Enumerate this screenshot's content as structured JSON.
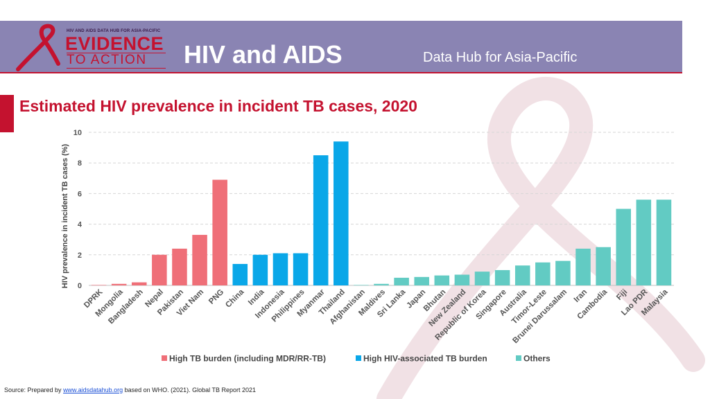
{
  "header": {
    "logo_small_text": "HIV AND AIDS DATA HUB FOR ASIA-PACIFIC",
    "logo_main": "EVIDENCE",
    "logo_sub": "TO ACTION",
    "title": "HIV and AIDS",
    "subtitle": "Data Hub for Asia-Pacific"
  },
  "colors": {
    "header_bg": "#8a84b3",
    "accent_red": "#c4122f",
    "high_tb": "#ef6f78",
    "high_hiv_tb": "#0aa7e8",
    "others": "#62cbc3"
  },
  "source": {
    "prefix": "Source: Prepared by ",
    "link": "www.aidsdatahub.org",
    "suffix": " based on WHO. (2021). Global TB Report 2021"
  },
  "chart_data": {
    "type": "bar",
    "title": "Estimated HIV prevalence in incident TB cases, 2020",
    "xlabel": "",
    "ylabel": "HIV prevalence in incident TB cases (%)",
    "ylim": [
      0,
      10
    ],
    "yticks": [
      0,
      2,
      4,
      6,
      8,
      10
    ],
    "grid": true,
    "legend_position": "bottom",
    "categories": [
      "DPRK",
      "Mongolia",
      "Bangladesh",
      "Nepal",
      "Pakistan",
      "Viet Nam",
      "PNG",
      "China",
      "India",
      "Indonesia",
      "Philippines",
      "Myanmar",
      "Thailand",
      "Afghanistan",
      "Maldives",
      "Sri Lanka",
      "Japan",
      "Bhutan",
      "New Zealand",
      "Republic of Korea",
      "Singapore",
      "Australia",
      "Timor-Leste",
      "Brunei Darussalam",
      "Iran",
      "Cambodia",
      "Fiji",
      "Lao PDR",
      "Malaysia"
    ],
    "values": [
      0.0,
      0.1,
      0.2,
      2.0,
      2.4,
      3.3,
      6.9,
      1.4,
      2.0,
      2.1,
      2.1,
      8.5,
      9.4,
      0.02,
      0.1,
      0.5,
      0.55,
      0.65,
      0.7,
      0.9,
      1.0,
      1.3,
      1.5,
      1.6,
      2.4,
      2.5,
      5.0,
      5.6,
      5.6
    ],
    "groups": [
      "high_tb",
      "high_tb",
      "high_tb",
      "high_tb",
      "high_tb",
      "high_tb",
      "high_tb",
      "high_hiv_tb",
      "high_hiv_tb",
      "high_hiv_tb",
      "high_hiv_tb",
      "high_hiv_tb",
      "high_hiv_tb",
      "others",
      "others",
      "others",
      "others",
      "others",
      "others",
      "others",
      "others",
      "others",
      "others",
      "others",
      "others",
      "others",
      "others",
      "others",
      "others"
    ],
    "series": [
      {
        "key": "high_tb",
        "name": "High TB burden (including MDR/RR-TB)"
      },
      {
        "key": "high_hiv_tb",
        "name": "High HIV-associated TB burden"
      },
      {
        "key": "others",
        "name": "Others"
      }
    ]
  }
}
